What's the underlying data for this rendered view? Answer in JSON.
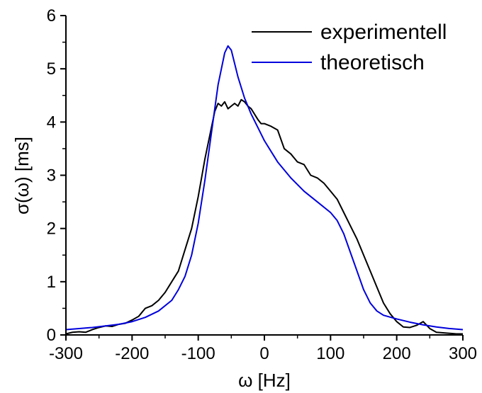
{
  "chart_data": {
    "type": "line",
    "xlabel": "ω [Hz]",
    "ylabel": "σ(ω) [ms]",
    "xlim": [
      -300,
      300
    ],
    "ylim": [
      0,
      6
    ],
    "x_ticks": [
      -300,
      -200,
      -100,
      0,
      100,
      200,
      300
    ],
    "x_tick_labels": [
      "-300",
      "-200",
      "-100",
      "0",
      "100",
      "200",
      "300"
    ],
    "y_ticks": [
      0,
      1,
      2,
      3,
      4,
      5,
      6
    ],
    "y_tick_labels": [
      "0",
      "1",
      "2",
      "3",
      "4",
      "5",
      "6"
    ],
    "grid": false,
    "legend_position": "top-right",
    "series": [
      {
        "name": "experimentell",
        "color": "#000000",
        "points": [
          [
            -300,
            0.02
          ],
          [
            -290,
            0.05
          ],
          [
            -280,
            0.06
          ],
          [
            -270,
            0.05
          ],
          [
            -260,
            0.1
          ],
          [
            -250,
            0.14
          ],
          [
            -240,
            0.17
          ],
          [
            -230,
            0.16
          ],
          [
            -220,
            0.2
          ],
          [
            -210,
            0.22
          ],
          [
            -200,
            0.28
          ],
          [
            -190,
            0.35
          ],
          [
            -180,
            0.5
          ],
          [
            -170,
            0.55
          ],
          [
            -160,
            0.65
          ],
          [
            -150,
            0.8
          ],
          [
            -140,
            1.0
          ],
          [
            -130,
            1.2
          ],
          [
            -120,
            1.6
          ],
          [
            -110,
            2.0
          ],
          [
            -100,
            2.6
          ],
          [
            -90,
            3.3
          ],
          [
            -80,
            3.9
          ],
          [
            -75,
            4.2
          ],
          [
            -70,
            4.35
          ],
          [
            -65,
            4.3
          ],
          [
            -60,
            4.38
          ],
          [
            -55,
            4.25
          ],
          [
            -50,
            4.3
          ],
          [
            -45,
            4.35
          ],
          [
            -40,
            4.3
          ],
          [
            -35,
            4.42
          ],
          [
            -30,
            4.38
          ],
          [
            -25,
            4.3
          ],
          [
            -20,
            4.25
          ],
          [
            -15,
            4.15
          ],
          [
            -10,
            4.05
          ],
          [
            -5,
            3.97
          ],
          [
            0,
            3.97
          ],
          [
            10,
            3.92
          ],
          [
            20,
            3.85
          ],
          [
            30,
            3.5
          ],
          [
            40,
            3.4
          ],
          [
            50,
            3.25
          ],
          [
            60,
            3.2
          ],
          [
            70,
            3.0
          ],
          [
            80,
            2.95
          ],
          [
            90,
            2.85
          ],
          [
            100,
            2.7
          ],
          [
            110,
            2.55
          ],
          [
            120,
            2.3
          ],
          [
            130,
            2.05
          ],
          [
            140,
            1.8
          ],
          [
            150,
            1.5
          ],
          [
            160,
            1.2
          ],
          [
            170,
            0.9
          ],
          [
            180,
            0.6
          ],
          [
            190,
            0.4
          ],
          [
            200,
            0.25
          ],
          [
            210,
            0.15
          ],
          [
            220,
            0.14
          ],
          [
            230,
            0.18
          ],
          [
            240,
            0.25
          ],
          [
            250,
            0.12
          ],
          [
            260,
            0.05
          ],
          [
            270,
            0.04
          ],
          [
            280,
            0.03
          ],
          [
            290,
            0.02
          ],
          [
            300,
            0.02
          ]
        ]
      },
      {
        "name": "theoretisch",
        "color": "#0000dd",
        "points": [
          [
            -300,
            0.1
          ],
          [
            -280,
            0.12
          ],
          [
            -260,
            0.14
          ],
          [
            -240,
            0.17
          ],
          [
            -220,
            0.2
          ],
          [
            -200,
            0.25
          ],
          [
            -180,
            0.33
          ],
          [
            -160,
            0.45
          ],
          [
            -140,
            0.65
          ],
          [
            -130,
            0.85
          ],
          [
            -120,
            1.1
          ],
          [
            -110,
            1.5
          ],
          [
            -100,
            2.1
          ],
          [
            -90,
            2.9
          ],
          [
            -80,
            3.8
          ],
          [
            -70,
            4.7
          ],
          [
            -60,
            5.3
          ],
          [
            -55,
            5.43
          ],
          [
            -50,
            5.35
          ],
          [
            -45,
            5.1
          ],
          [
            -40,
            4.85
          ],
          [
            -30,
            4.45
          ],
          [
            -20,
            4.15
          ],
          [
            -10,
            3.9
          ],
          [
            0,
            3.65
          ],
          [
            10,
            3.45
          ],
          [
            20,
            3.25
          ],
          [
            40,
            2.95
          ],
          [
            60,
            2.7
          ],
          [
            80,
            2.5
          ],
          [
            100,
            2.3
          ],
          [
            110,
            2.15
          ],
          [
            120,
            1.9
          ],
          [
            130,
            1.55
          ],
          [
            140,
            1.2
          ],
          [
            150,
            0.85
          ],
          [
            160,
            0.6
          ],
          [
            170,
            0.45
          ],
          [
            180,
            0.37
          ],
          [
            200,
            0.3
          ],
          [
            220,
            0.24
          ],
          [
            240,
            0.19
          ],
          [
            260,
            0.15
          ],
          [
            280,
            0.12
          ],
          [
            300,
            0.1
          ]
        ]
      }
    ]
  }
}
